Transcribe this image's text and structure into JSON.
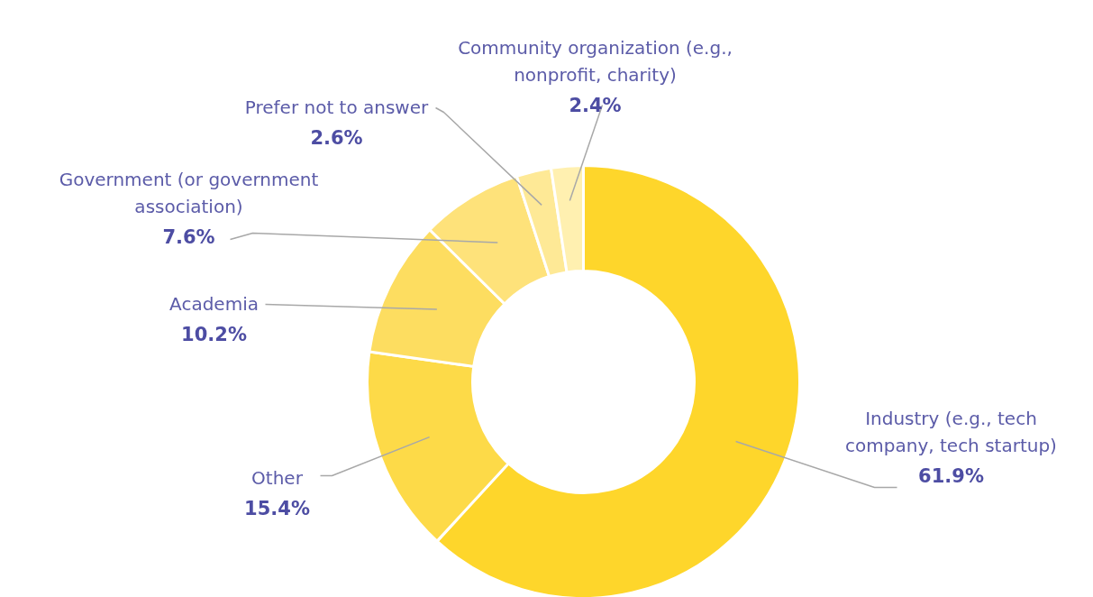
{
  "chart_data": {
    "type": "donut",
    "categories": [
      "Industry (e.g., tech company, tech startup)",
      "Other",
      "Academia",
      "Government (or government association)",
      "Prefer not to answer",
      "Community organization (e.g., nonprofit, charity)"
    ],
    "values": [
      61.9,
      15.4,
      10.2,
      7.6,
      2.6,
      2.4
    ],
    "colors": [
      "#fed62b",
      "#fdda48",
      "#fddd60",
      "#fee27a",
      "#fee996",
      "#fff0b0"
    ],
    "value_labels": [
      "61.9%",
      "15.4%",
      "10.2%",
      "7.6%",
      "2.6%",
      "2.4%"
    ]
  }
}
